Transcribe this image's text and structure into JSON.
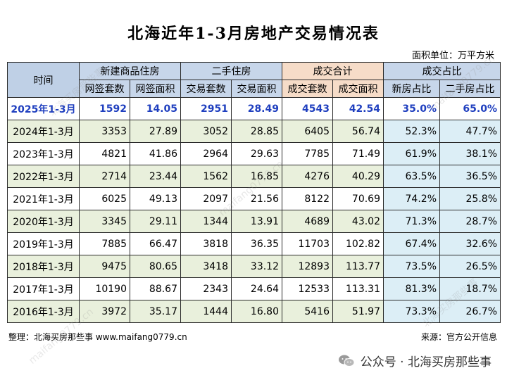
{
  "title": "北海近年1-3月房地产交易情况表",
  "unit": "面积单位：万平方米",
  "headers": {
    "time": "时间",
    "new": "新建商品住房",
    "used": "二手住房",
    "total": "成交合计",
    "share": "成交占比",
    "sub": [
      "网签套数",
      "网签面积",
      "交易套数",
      "交易面积",
      "成交套数",
      "成交面积",
      "新房占比",
      "二手房占比"
    ]
  },
  "rows": [
    {
      "time": "2025年1-3月",
      "new_units": "1592",
      "new_area": "14.05",
      "used_units": "2951",
      "used_area": "28.49",
      "total_units": "4543",
      "total_area": "42.54",
      "new_share": "35.0%",
      "used_share": "65.0%"
    },
    {
      "time": "2024年1-3月",
      "new_units": "3353",
      "new_area": "27.89",
      "used_units": "3052",
      "used_area": "28.85",
      "total_units": "6405",
      "total_area": "56.74",
      "new_share": "52.3%",
      "used_share": "47.7%"
    },
    {
      "time": "2023年1-3月",
      "new_units": "4821",
      "new_area": "41.86",
      "used_units": "2964",
      "used_area": "29.63",
      "total_units": "7785",
      "total_area": "71.49",
      "new_share": "61.9%",
      "used_share": "38.1%"
    },
    {
      "time": "2022年1-3月",
      "new_units": "2714",
      "new_area": "23.44",
      "used_units": "1562",
      "used_area": "16.85",
      "total_units": "4276",
      "total_area": "40.29",
      "new_share": "63.5%",
      "used_share": "36.5%"
    },
    {
      "time": "2021年1-3月",
      "new_units": "6025",
      "new_area": "49.13",
      "used_units": "2097",
      "used_area": "21.56",
      "total_units": "8122",
      "total_area": "70.69",
      "new_share": "74.2%",
      "used_share": "25.8%"
    },
    {
      "time": "2020年1-3月",
      "new_units": "3345",
      "new_area": "29.11",
      "used_units": "1344",
      "used_area": "13.91",
      "total_units": "4689",
      "total_area": "43.02",
      "new_share": "71.3%",
      "used_share": "28.7%"
    },
    {
      "time": "2019年1-3月",
      "new_units": "7885",
      "new_area": "66.47",
      "used_units": "3818",
      "used_area": "36.35",
      "total_units": "11703",
      "total_area": "102.82",
      "new_share": "67.4%",
      "used_share": "32.6%"
    },
    {
      "time": "2018年1-3月",
      "new_units": "9475",
      "new_area": "80.65",
      "used_units": "3418",
      "used_area": "33.12",
      "total_units": "12893",
      "total_area": "113.77",
      "new_share": "73.5%",
      "used_share": "26.5%"
    },
    {
      "time": "2017年1-3月",
      "new_units": "10190",
      "new_area": "88.67",
      "used_units": "2343",
      "used_area": "24.64",
      "total_units": "12533",
      "total_area": "113.31",
      "new_share": "81.3%",
      "used_share": "18.7%"
    },
    {
      "time": "2016年1-3月",
      "new_units": "3972",
      "new_area": "35.17",
      "used_units": "1444",
      "used_area": "16.80",
      "total_units": "5416",
      "total_area": "51.97",
      "new_share": "73.3%",
      "used_share": "26.7%"
    }
  ],
  "footer": {
    "left": "整理：北海买房那些事 www.maifang0779.cn",
    "right": "来源：官方公开信息",
    "wechat": "公众号 · 北海买房那些事",
    "wechat_icon": "wechat-icon"
  },
  "watermark": [
    "北海买房那些事",
    "maifang0779.cn"
  ],
  "colors": {
    "highlight_text": "#1f3fbf",
    "green_row": "#e9f0dc",
    "share_col": "#dceef6",
    "header_blue": "#c7d6ea",
    "header_orange": "#f6dcc8"
  }
}
